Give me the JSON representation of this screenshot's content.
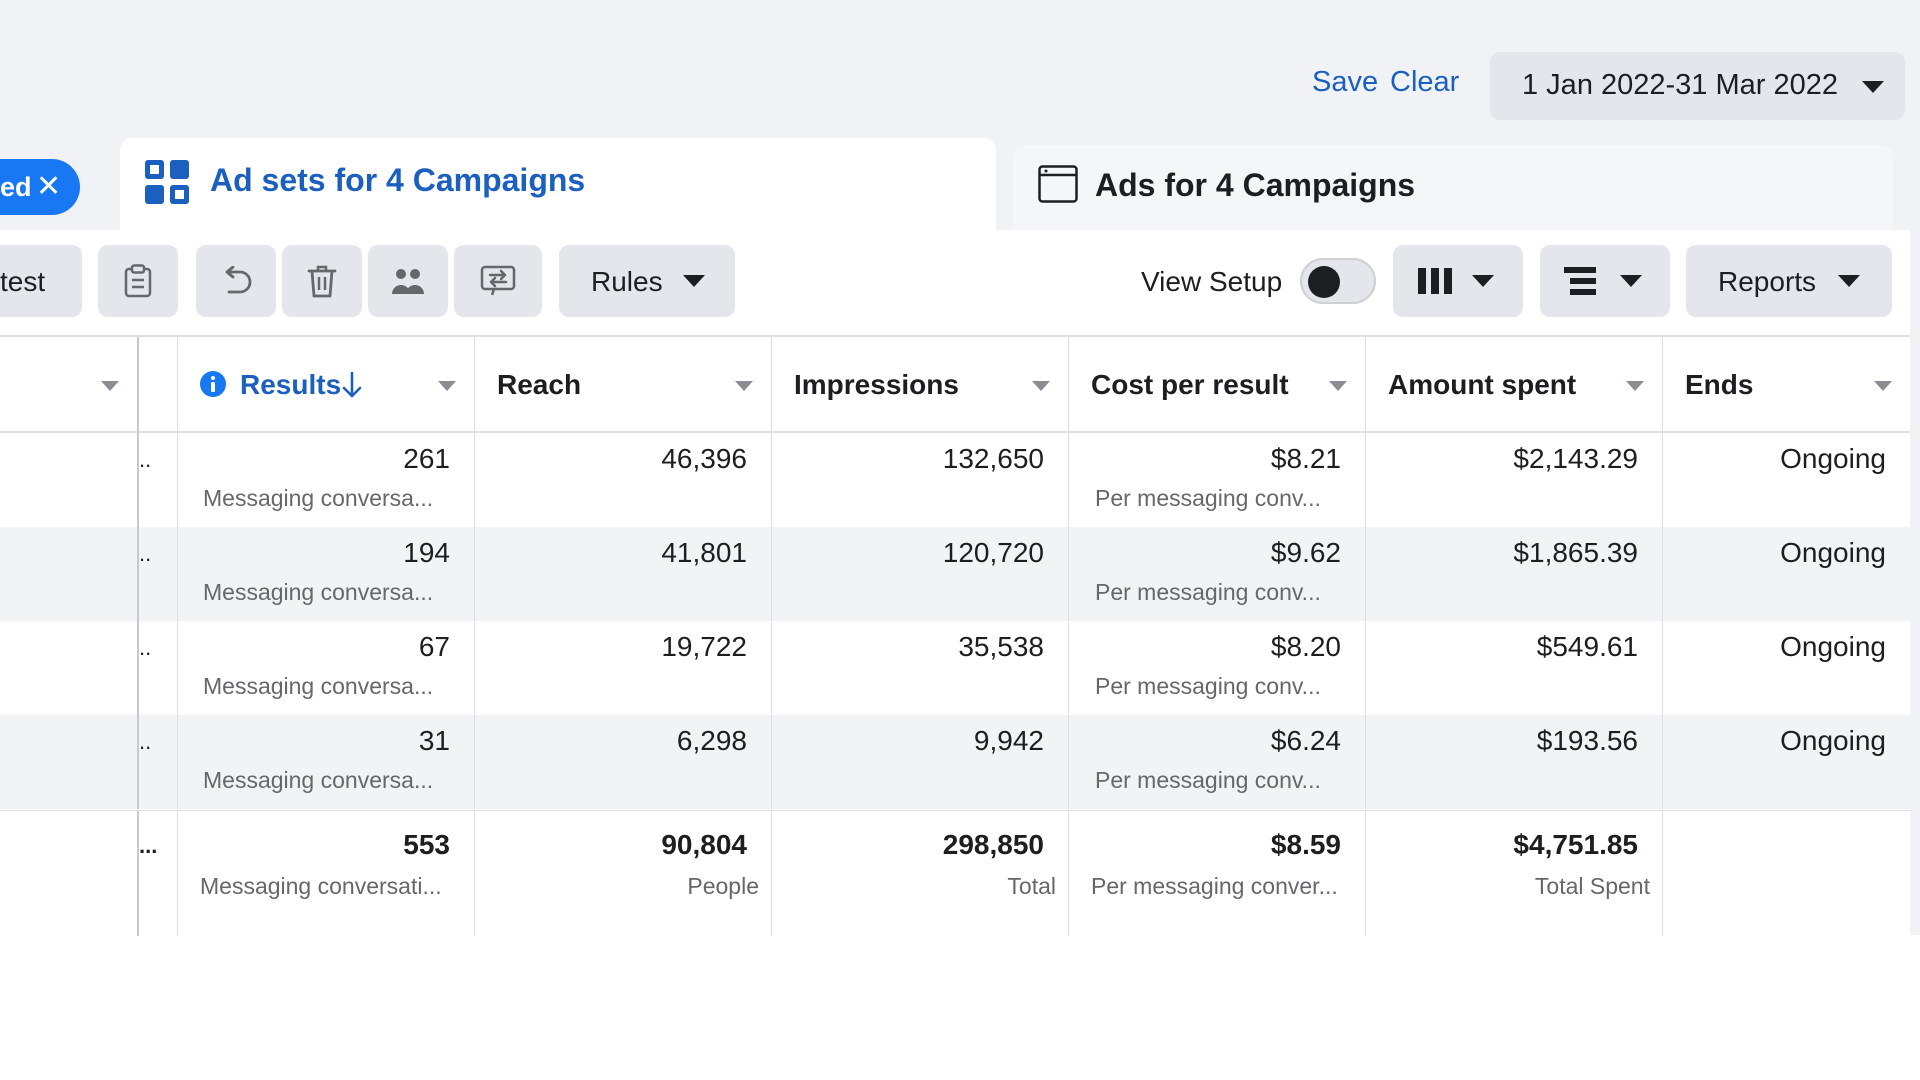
{
  "header": {
    "save_label": "Save",
    "clear_label": "Clear",
    "date_range": "1 Jan 2022-31 Mar 2022"
  },
  "filter_chip": {
    "label": "ed"
  },
  "tabs": {
    "adsets_label": "Ad sets for 4 Campaigns",
    "ads_label": "Ads for 4 Campaigns"
  },
  "toolbar": {
    "test_label": "test",
    "rules_label": "Rules",
    "view_setup_label": "View Setup",
    "reports_label": "Reports"
  },
  "table": {
    "columns": [
      "Results",
      "Reach",
      "Impressions",
      "Cost per result",
      "Amount spent",
      "Ends"
    ],
    "rows": [
      {
        "results": "261",
        "results_sub": "Messaging conversa...",
        "reach": "46,396",
        "impressions": "132,650",
        "cpr": "$8.21",
        "cpr_sub": "Per messaging conv...",
        "spent": "$2,143.29",
        "ends": "Ongoing"
      },
      {
        "results": "194",
        "results_sub": "Messaging conversa...",
        "reach": "41,801",
        "impressions": "120,720",
        "cpr": "$9.62",
        "cpr_sub": "Per messaging conv...",
        "spent": "$1,865.39",
        "ends": "Ongoing"
      },
      {
        "results": "67",
        "results_sub": "Messaging conversa...",
        "reach": "19,722",
        "impressions": "35,538",
        "cpr": "$8.20",
        "cpr_sub": "Per messaging conv...",
        "spent": "$549.61",
        "ends": "Ongoing"
      },
      {
        "results": "31",
        "results_sub": "Messaging conversa...",
        "reach": "6,298",
        "impressions": "9,942",
        "cpr": "$6.24",
        "cpr_sub": "Per messaging conv...",
        "spent": "$193.56",
        "ends": "Ongoing"
      }
    ],
    "row_dots": "..",
    "total": {
      "dots": "...",
      "results": "553",
      "results_sub": "Messaging conversati...",
      "reach": "90,804",
      "reach_sub": "People",
      "impressions": "298,850",
      "impressions_sub": "Total",
      "cpr": "$8.59",
      "cpr_sub": "Per messaging conver...",
      "spent": "$4,751.85",
      "spent_sub": "Total Spent"
    }
  },
  "colors": {
    "accent_blue": "#1b5fbf",
    "chip_blue": "#1877f2",
    "info_blue": "#1877f2",
    "toolbar_button_bg": "#e4e6eb",
    "striped_row_bg": "#f2f3f5"
  },
  "icons": [
    "close-icon",
    "grid-icon",
    "ad-preview-icon",
    "clipboard-icon",
    "undo-icon",
    "trash-icon",
    "people-icon",
    "ab-test-icon",
    "columns-icon",
    "breakdown-icon",
    "info-icon",
    "sort-down-arrow-icon",
    "chevron-down-icon"
  ]
}
